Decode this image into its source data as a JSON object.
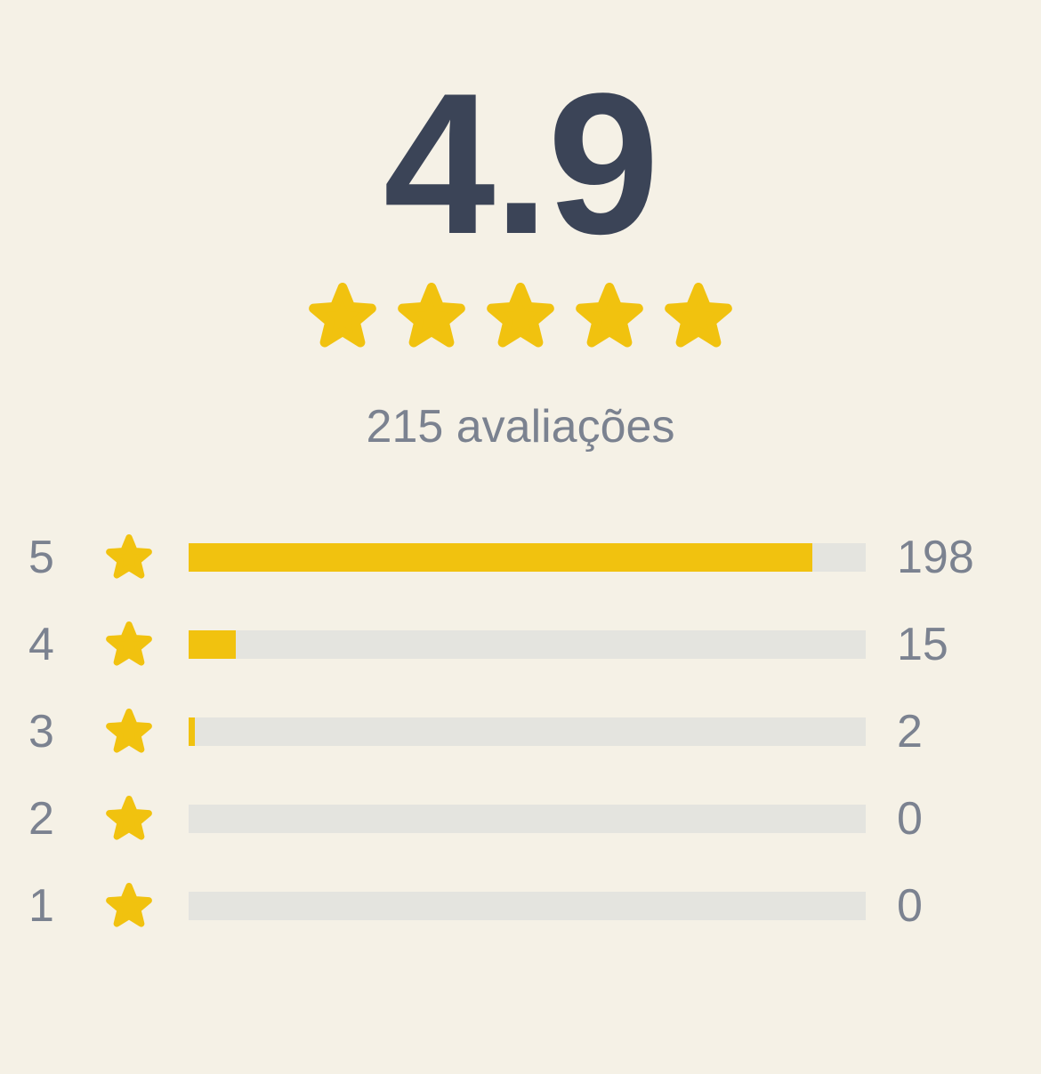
{
  "colors": {
    "bg": "#F5F1E6",
    "navy": "#3B4457",
    "gray_text": "#7B8290",
    "track": "#E4E4DF",
    "yellow": "#F1C20F"
  },
  "summary": {
    "score": "4.9",
    "stars_filled": 5,
    "stars_total": 5,
    "reviews_label": "215 avaliações"
  },
  "icons": {
    "star": "★"
  },
  "chart_data": {
    "type": "bar",
    "title": "4.9",
    "subtitle": "215 avaliações",
    "orientation": "horizontal",
    "total_reviews": 215,
    "categories": [
      "5",
      "4",
      "3",
      "2",
      "1"
    ],
    "values": [
      198,
      15,
      2,
      0,
      0
    ],
    "percents_of_total": [
      92.1,
      7.0,
      0.93,
      0,
      0
    ],
    "xlim": [
      0,
      215
    ],
    "grid": false,
    "legend": false,
    "rows": [
      {
        "stars": "5",
        "count": "198",
        "percent": 92.1
      },
      {
        "stars": "4",
        "count": "15",
        "percent": 7.0
      },
      {
        "stars": "3",
        "count": "2",
        "percent": 0.93
      },
      {
        "stars": "2",
        "count": "0",
        "percent": 0
      },
      {
        "stars": "1",
        "count": "0",
        "percent": 0
      }
    ]
  }
}
